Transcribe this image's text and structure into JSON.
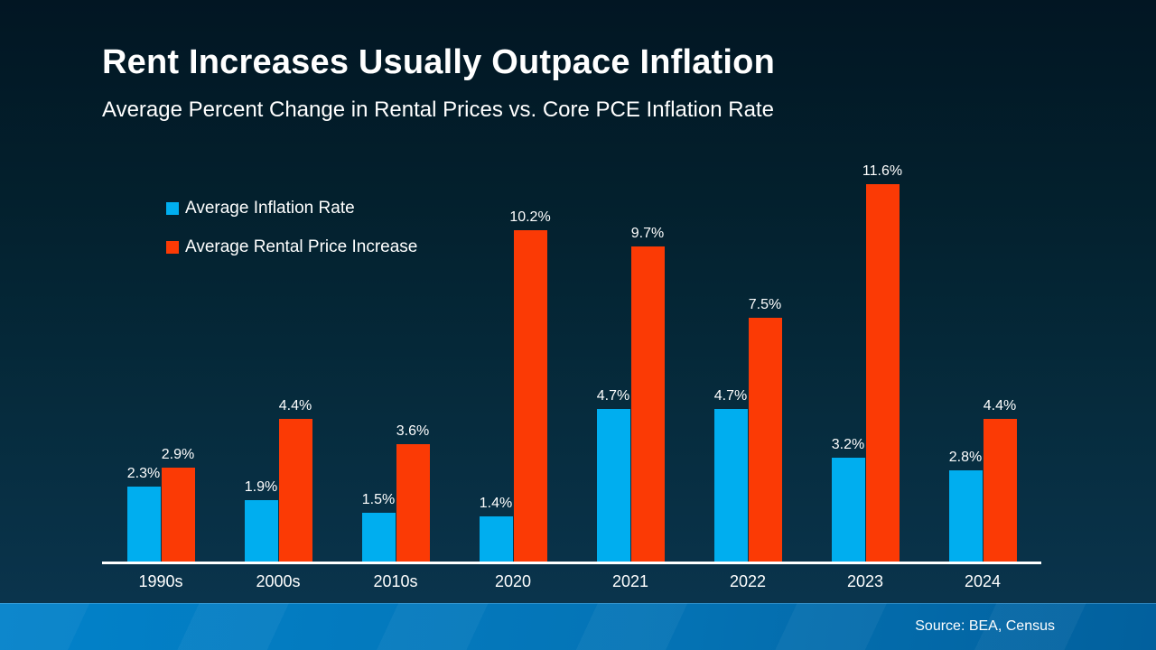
{
  "slide": {
    "title": "Rent Increases Usually Outpace Inflation",
    "subtitle": "Average Percent Change in Rental Prices vs. Core PCE Inflation Rate",
    "source": "Source: BEA, Census"
  },
  "legend": [
    {
      "label": "Average Inflation Rate",
      "color": "#00AEEF"
    },
    {
      "label": "Average Rental Price Increase",
      "color": "#FB3A05"
    }
  ],
  "chart_data": {
    "type": "bar",
    "title": "Rent Increases Usually Outpace Inflation",
    "subtitle": "Average Percent Change in Rental Prices vs. Core PCE Inflation Rate",
    "categories": [
      "1990s",
      "2000s",
      "2010s",
      "2020",
      "2021",
      "2022",
      "2023",
      "2024"
    ],
    "series": [
      {
        "name": "Average Inflation Rate",
        "color": "#00AEEF",
        "values": [
          2.3,
          1.9,
          1.5,
          1.4,
          4.7,
          4.7,
          3.2,
          2.8
        ]
      },
      {
        "name": "Average Rental Price Increase",
        "color": "#FB3A05",
        "values": [
          2.9,
          4.4,
          3.6,
          10.2,
          9.7,
          7.5,
          11.6,
          4.4
        ]
      }
    ],
    "value_label_format": "{v}%",
    "xlabel": "",
    "ylabel": "",
    "ylim": [
      0,
      12
    ],
    "grid": false,
    "legend_position": "top-left",
    "source": "Source: BEA, Census"
  },
  "colors": {
    "background_top": "#021623",
    "background_bottom": "#0b3650",
    "bar_blue": "#00AEEF",
    "bar_red": "#FB3A05",
    "axis": "#ffffff",
    "footer_left": "#0282ca",
    "footer_right": "#02609d",
    "text": "#ffffff"
  }
}
